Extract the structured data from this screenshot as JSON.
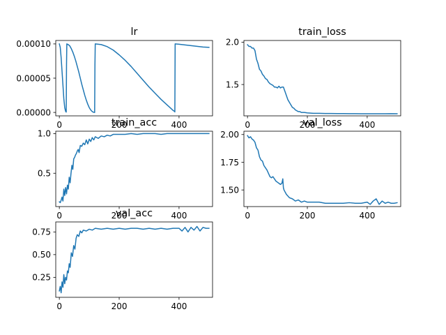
{
  "chart_data": [
    {
      "type": "line",
      "title": "lr",
      "xlim": [
        -12,
        512
      ],
      "ylim": [
        -5e-06,
        0.000105
      ],
      "xticks": [
        0,
        200,
        400
      ],
      "xtick_labels": [
        "0",
        "200",
        "400"
      ],
      "yticks": [
        0.0,
        5e-05,
        0.0001
      ],
      "ytick_labels": [
        "0.00000",
        "0.00005",
        "0.00010"
      ],
      "series": [
        {
          "x": [
            0,
            3,
            6,
            9,
            12,
            15,
            18,
            21,
            23,
            24,
            25,
            30,
            35,
            40,
            45,
            50,
            55,
            60,
            65,
            70,
            75,
            80,
            85,
            90,
            95,
            100,
            105,
            110,
            115,
            118,
            119,
            120,
            140,
            160,
            180,
            200,
            220,
            240,
            260,
            280,
            300,
            320,
            340,
            360,
            370,
            380,
            385,
            386,
            387,
            400,
            420,
            440,
            460,
            480,
            500
          ],
          "y": [
            0.0001,
            9.5e-05,
            8e-05,
            6e-05,
            4e-05,
            2e-05,
            7e-06,
            1.5e-06,
            5e-07,
            7e-05,
            0.0001,
            9.9e-05,
            9.7e-05,
            9.3e-05,
            8.8e-05,
            8.2e-05,
            7.5e-05,
            6.7e-05,
            5.9e-05,
            5e-05,
            4.1e-05,
            3.3e-05,
            2.5e-05,
            1.8e-05,
            1.2e-05,
            7e-06,
            3.5e-06,
            1.2e-06,
            2e-07,
            0.0,
            7e-05,
            0.0001,
            9.9e-05,
            9.6e-05,
            9.1e-05,
            8.4e-05,
            7.6e-05,
            6.7e-05,
            5.7e-05,
            4.7e-05,
            3.7e-05,
            2.8e-05,
            1.9e-05,
            1.1e-05,
            7e-06,
            3e-06,
            1.5e-06,
            8e-07,
            0.0001,
            9.95e-05,
            9.85e-05,
            9.75e-05,
            9.65e-05,
            9.55e-05,
            9.5e-05
          ]
        }
      ]
    },
    {
      "type": "line",
      "title": "train_loss",
      "xlim": [
        -12,
        512
      ],
      "ylim": [
        1.13,
        2.02
      ],
      "xticks": [
        0,
        200,
        400
      ],
      "xtick_labels": [
        "0",
        "200",
        "400"
      ],
      "yticks": [
        1.5,
        2.0
      ],
      "ytick_labels": [
        "1.5",
        "2.0"
      ],
      "series": [
        {
          "x": [
            0,
            5,
            10,
            15,
            20,
            25,
            30,
            35,
            40,
            45,
            50,
            55,
            60,
            65,
            70,
            75,
            80,
            85,
            90,
            95,
            100,
            105,
            110,
            115,
            120,
            125,
            130,
            135,
            140,
            145,
            150,
            155,
            160,
            165,
            170,
            175,
            180,
            190,
            200,
            220,
            240,
            260,
            280,
            300,
            320,
            340,
            360,
            380,
            400,
            420,
            440,
            460,
            480,
            500
          ],
          "y": [
            1.97,
            1.95,
            1.95,
            1.93,
            1.93,
            1.9,
            1.8,
            1.75,
            1.68,
            1.66,
            1.62,
            1.6,
            1.57,
            1.56,
            1.53,
            1.51,
            1.5,
            1.49,
            1.47,
            1.47,
            1.46,
            1.48,
            1.46,
            1.47,
            1.47,
            1.42,
            1.37,
            1.32,
            1.29,
            1.26,
            1.23,
            1.22,
            1.2,
            1.19,
            1.18,
            1.18,
            1.17,
            1.17,
            1.165,
            1.16,
            1.16,
            1.158,
            1.158,
            1.157,
            1.157,
            1.156,
            1.156,
            1.155,
            1.155,
            1.155,
            1.155,
            1.155,
            1.156,
            1.155
          ]
        }
      ]
    },
    {
      "type": "line",
      "title": "train_acc",
      "xlim": [
        -12,
        512
      ],
      "ylim": [
        0.08,
        1.03
      ],
      "xticks": [
        0,
        200,
        400
      ],
      "xtick_labels": [
        "0",
        "200",
        "400"
      ],
      "yticks": [
        0.5,
        1.0
      ],
      "ytick_labels": [
        "0.5",
        "1.0"
      ],
      "series": [
        {
          "x": [
            0,
            3,
            6,
            9,
            12,
            15,
            18,
            21,
            24,
            27,
            30,
            33,
            36,
            39,
            42,
            45,
            48,
            51,
            54,
            57,
            60,
            63,
            66,
            70,
            75,
            80,
            85,
            90,
            95,
            100,
            105,
            110,
            115,
            120,
            130,
            140,
            150,
            160,
            170,
            180,
            200,
            220,
            240,
            260,
            280,
            300,
            320,
            340,
            360,
            380,
            400,
            420,
            440,
            460,
            480,
            500
          ],
          "y": [
            0.14,
            0.13,
            0.16,
            0.2,
            0.15,
            0.3,
            0.22,
            0.32,
            0.24,
            0.35,
            0.3,
            0.45,
            0.38,
            0.5,
            0.6,
            0.55,
            0.68,
            0.7,
            0.73,
            0.75,
            0.78,
            0.8,
            0.76,
            0.85,
            0.84,
            0.88,
            0.86,
            0.92,
            0.87,
            0.93,
            0.9,
            0.95,
            0.92,
            0.96,
            0.94,
            0.97,
            0.96,
            0.98,
            0.97,
            0.99,
            0.99,
            0.99,
            1.0,
            0.99,
            1.0,
            1.0,
            1.0,
            0.99,
            1.0,
            1.0,
            1.0,
            1.0,
            1.0,
            1.0,
            1.0,
            1.0
          ]
        }
      ]
    },
    {
      "type": "line",
      "title": "val_loss",
      "xlim": [
        -12,
        512
      ],
      "ylim": [
        1.35,
        2.03
      ],
      "xticks": [
        0,
        200,
        400
      ],
      "xtick_labels": [
        "0",
        "200",
        "400"
      ],
      "yticks": [
        1.5,
        1.75,
        2.0
      ],
      "ytick_labels": [
        "1.50",
        "1.75",
        "2.00"
      ],
      "series": [
        {
          "x": [
            0,
            5,
            10,
            15,
            20,
            25,
            30,
            35,
            40,
            45,
            50,
            55,
            60,
            65,
            70,
            75,
            80,
            85,
            90,
            95,
            100,
            105,
            110,
            115,
            118,
            120,
            122,
            130,
            140,
            150,
            160,
            170,
            180,
            190,
            200,
            220,
            240,
            260,
            280,
            300,
            320,
            340,
            360,
            380,
            400,
            410,
            420,
            430,
            440,
            450,
            460,
            470,
            480,
            490,
            500
          ],
          "y": [
            1.99,
            1.97,
            1.98,
            1.96,
            1.95,
            1.93,
            1.88,
            1.86,
            1.8,
            1.77,
            1.76,
            1.72,
            1.7,
            1.68,
            1.65,
            1.62,
            1.61,
            1.62,
            1.6,
            1.58,
            1.57,
            1.56,
            1.55,
            1.56,
            1.6,
            1.52,
            1.5,
            1.46,
            1.43,
            1.42,
            1.4,
            1.41,
            1.39,
            1.4,
            1.39,
            1.39,
            1.39,
            1.38,
            1.38,
            1.38,
            1.38,
            1.385,
            1.38,
            1.38,
            1.39,
            1.37,
            1.4,
            1.42,
            1.37,
            1.4,
            1.38,
            1.39,
            1.38,
            1.38,
            1.385
          ]
        }
      ]
    },
    {
      "type": "line",
      "title": "val_acc",
      "xlim": [
        -12,
        512
      ],
      "ylim": [
        0.03,
        0.86
      ],
      "xticks": [
        0,
        200,
        400
      ],
      "xtick_labels": [
        "0",
        "200",
        "400"
      ],
      "yticks": [
        0.25,
        0.5,
        0.75
      ],
      "ytick_labels": [
        "0.25",
        "0.50",
        "0.75"
      ],
      "series": [
        {
          "x": [
            0,
            3,
            6,
            9,
            12,
            15,
            18,
            21,
            24,
            27,
            30,
            33,
            36,
            40,
            44,
            48,
            52,
            56,
            60,
            65,
            70,
            75,
            80,
            90,
            100,
            110,
            120,
            140,
            160,
            180,
            200,
            220,
            240,
            260,
            280,
            300,
            320,
            340,
            360,
            380,
            400,
            410,
            420,
            430,
            440,
            450,
            460,
            470,
            480,
            490,
            500
          ],
          "y": [
            0.1,
            0.15,
            0.08,
            0.2,
            0.14,
            0.28,
            0.18,
            0.25,
            0.22,
            0.32,
            0.3,
            0.4,
            0.36,
            0.52,
            0.48,
            0.6,
            0.56,
            0.68,
            0.72,
            0.7,
            0.76,
            0.74,
            0.77,
            0.76,
            0.78,
            0.77,
            0.79,
            0.78,
            0.79,
            0.78,
            0.79,
            0.78,
            0.79,
            0.79,
            0.78,
            0.79,
            0.78,
            0.79,
            0.78,
            0.79,
            0.79,
            0.76,
            0.8,
            0.75,
            0.8,
            0.77,
            0.81,
            0.76,
            0.8,
            0.79,
            0.79
          ]
        }
      ]
    }
  ]
}
